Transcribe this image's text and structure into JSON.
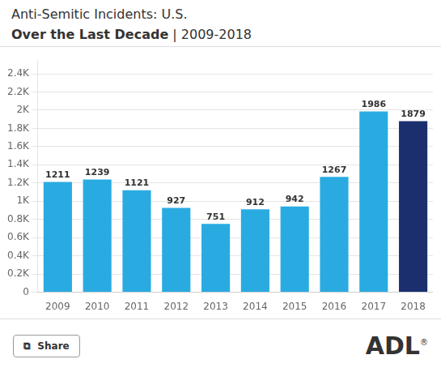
{
  "chart_data": {
    "type": "bar",
    "title": "Anti-Semitic Incidents: U.S.",
    "subtitle": "Over the Last Decade | 2009-2018",
    "categories": [
      "2009",
      "2010",
      "2011",
      "2012",
      "2013",
      "2014",
      "2015",
      "2016",
      "2017",
      "2018"
    ],
    "values": [
      1211,
      1239,
      1121,
      927,
      751,
      912,
      942,
      1267,
      1986,
      1879
    ],
    "colors": [
      "#29ABE2",
      "#29ABE2",
      "#29ABE2",
      "#29ABE2",
      "#29ABE2",
      "#29ABE2",
      "#29ABE2",
      "#29ABE2",
      "#29ABE2",
      "#1B2F6E"
    ],
    "ylim": [
      0,
      2550
    ],
    "yticks": [
      0,
      {
        "value": 200,
        "label": "0.2K"
      },
      {
        "value": 400,
        "label": "0.4K"
      },
      {
        "value": 600,
        "label": "0.6K"
      },
      {
        "value": 800,
        "label": "0.8K"
      },
      {
        "value": 1000,
        "label": "1K"
      },
      {
        "value": 1200,
        "label": "1.2K"
      },
      {
        "value": 1400,
        "label": "1.4K"
      },
      {
        "value": 1600,
        "label": "1.6K"
      },
      {
        "value": 1800,
        "label": "1.8K"
      },
      {
        "value": 2000,
        "label": "2K"
      },
      {
        "value": 2200,
        "label": "2.2K"
      },
      {
        "value": 2400,
        "label": "2.4K"
      }
    ],
    "grid": true,
    "data_labels": true,
    "annotations": [
      "⧉  Share",
      "ADL",
      "®"
    ]
  }
}
